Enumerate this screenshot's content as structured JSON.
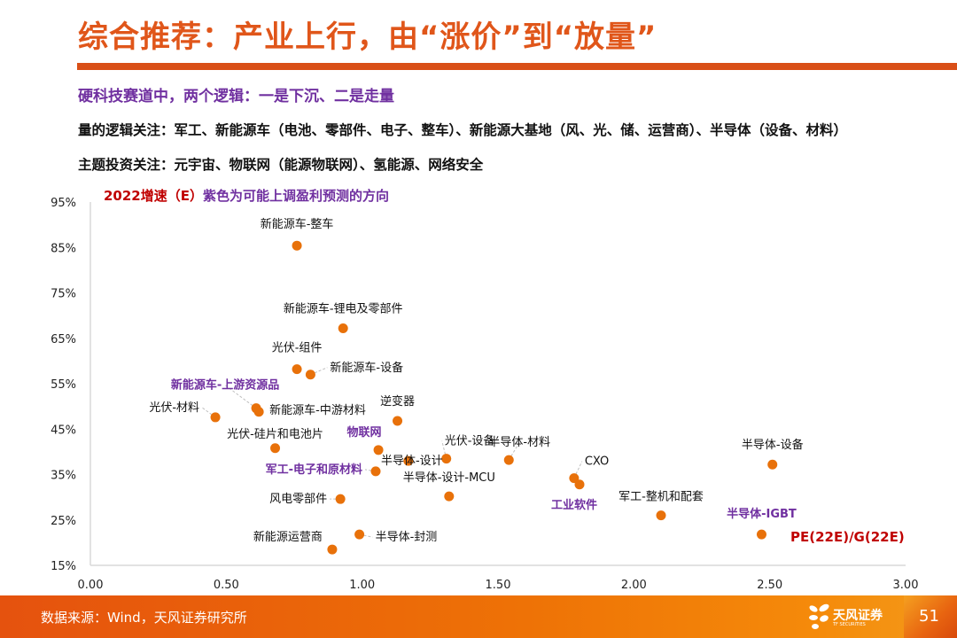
{
  "header": {
    "title": "综合推荐：产业上行，由“涨价”到“放量”",
    "subtitle": "硬科技赛道中，两个逻辑：一是下沉、二是走量",
    "line1": "量的逻辑关注：军工、新能源车（电池、零部件、电子、整车）、新能源大基地（风、光、储、运营商）、半导体（设备、材料）",
    "line2": "主题投资关注：元宇宙、物联网（能源物联网）、氢能源、网络安全"
  },
  "colors": {
    "accent": "#e0561a",
    "purple": "#7030a0",
    "red": "#c00000",
    "point": "#e8710a"
  },
  "chart_data": {
    "type": "scatter",
    "title_part1": "2022增速（E）",
    "title_part2": "紫色为可能上调盈利预测的方向",
    "xlabel": "PE(22E)/G(22E)",
    "ylabel": "2022增速（E）",
    "xlim": [
      0,
      3
    ],
    "ylim": [
      15,
      95
    ],
    "x_ticks": [
      "0.00",
      "0.50",
      "1.00",
      "1.50",
      "2.00",
      "2.50",
      "3.00"
    ],
    "y_ticks": [
      "15%",
      "25%",
      "35%",
      "45%",
      "55%",
      "65%",
      "75%",
      "85%",
      "95%"
    ],
    "grid": false,
    "points": [
      {
        "label": "新能源车-整车",
        "x": 0.76,
        "y": 85.4,
        "highlight": false
      },
      {
        "label": "新能源车-锂电及零部件",
        "x": 0.93,
        "y": 67.2,
        "highlight": false
      },
      {
        "label": "光伏-组件",
        "x": 0.76,
        "y": 58.2,
        "highlight": false
      },
      {
        "label": "新能源车-设备",
        "x": 0.81,
        "y": 57.0,
        "highlight": false
      },
      {
        "label": "新能源车-上游资源品",
        "x": 0.61,
        "y": 49.6,
        "highlight": true
      },
      {
        "label": "新能源车-中游材料",
        "x": 0.62,
        "y": 48.8,
        "highlight": false
      },
      {
        "label": "光伏-材料",
        "x": 0.46,
        "y": 47.6,
        "highlight": false
      },
      {
        "label": "逆变器",
        "x": 1.13,
        "y": 46.8,
        "highlight": false
      },
      {
        "label": "光伏-硅片和电池片",
        "x": 0.68,
        "y": 40.8,
        "highlight": false
      },
      {
        "label": "物联网",
        "x": 1.06,
        "y": 40.4,
        "highlight": true
      },
      {
        "label": "半导体-设计",
        "x": 1.17,
        "y": 38.0,
        "highlight": false
      },
      {
        "label": "光伏-设备",
        "x": 1.31,
        "y": 38.5,
        "highlight": false
      },
      {
        "label": "半导体-材料",
        "x": 1.54,
        "y": 38.2,
        "highlight": false
      },
      {
        "label": "军工-电子和原材料",
        "x": 1.05,
        "y": 35.7,
        "highlight": true
      },
      {
        "label": "半导体-设计-MCU",
        "x": 1.32,
        "y": 30.2,
        "highlight": false
      },
      {
        "label": "风电零部件",
        "x": 0.92,
        "y": 29.6,
        "highlight": false
      },
      {
        "label": "半导体-封测",
        "x": 0.99,
        "y": 21.8,
        "highlight": false
      },
      {
        "label": "新能源运营商",
        "x": 0.89,
        "y": 18.5,
        "highlight": false
      },
      {
        "label": "CXO",
        "x": 1.78,
        "y": 34.2,
        "highlight": false
      },
      {
        "label": "工业软件",
        "x": 1.8,
        "y": 32.8,
        "highlight": true
      },
      {
        "label": "军工-整机和配套",
        "x": 2.1,
        "y": 26.0,
        "highlight": false
      },
      {
        "label": "半导体-设备",
        "x": 2.51,
        "y": 37.2,
        "highlight": false
      },
      {
        "label": "半导体-IGBT",
        "x": 2.47,
        "y": 21.8,
        "highlight": true
      }
    ]
  },
  "footer": {
    "source": "数据来源：Wind，天风证券研究所",
    "logo_cn": "天风证券",
    "logo_en": "TF SECURITIES",
    "page_number": "51"
  }
}
